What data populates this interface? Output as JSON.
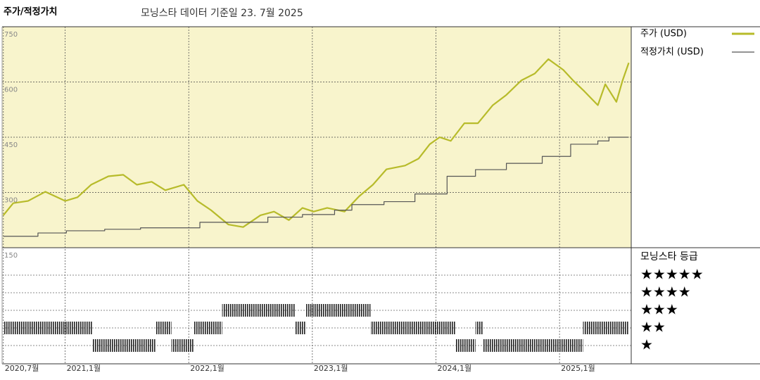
{
  "chart_data": {
    "type": "line",
    "title": "주가/적정가치",
    "subtitle": "모닝스타 데이터 기준일 23. 7월 2025",
    "xlim": [
      2020.49,
      2025.58
    ],
    "xticks": [
      {
        "value": 2020.5,
        "label": "2020,7월"
      },
      {
        "value": 2021,
        "label": "2021,1월"
      },
      {
        "value": 2022,
        "label": "2022,1월"
      },
      {
        "value": 2023,
        "label": "2023,1월"
      },
      {
        "value": 2024,
        "label": "2024,1월"
      },
      {
        "value": 2025,
        "label": "2025,1월"
      }
    ],
    "ylim": [
      150,
      750
    ],
    "yticks": [
      150,
      300,
      450,
      600,
      750
    ],
    "grid": true,
    "series": [
      {
        "name": "주가 (USD)",
        "color": "#b7bb2a",
        "x": [
          2020.5,
          2020.58,
          2020.7,
          2020.84,
          2021.0,
          2021.1,
          2021.21,
          2021.35,
          2021.47,
          2021.58,
          2021.7,
          2021.81,
          2021.96,
          2022.07,
          2022.18,
          2022.32,
          2022.44,
          2022.58,
          2022.69,
          2022.81,
          2022.92,
          2023.01,
          2023.12,
          2023.26,
          2023.38,
          2023.49,
          2023.6,
          2023.75,
          2023.86,
          2023.95,
          2024.03,
          2024.12,
          2024.23,
          2024.34,
          2024.46,
          2024.57,
          2024.69,
          2024.8,
          2024.91,
          2025.03,
          2025.11,
          2025.2,
          2025.31,
          2025.37,
          2025.46,
          2025.51,
          2025.56
        ],
        "values": [
          238,
          271,
          277,
          302,
          277,
          287,
          321,
          344,
          348,
          321,
          329,
          306,
          321,
          277,
          252,
          213,
          206,
          238,
          248,
          225,
          258,
          248,
          258,
          248,
          290,
          321,
          363,
          373,
          392,
          431,
          450,
          440,
          488,
          488,
          537,
          565,
          604,
          623,
          662,
          633,
          604,
          575,
          537,
          594,
          546,
          604,
          652
        ]
      },
      {
        "name": "적정가치 (USD)",
        "color": "#555555",
        "step": true,
        "x": [
          2020.5,
          2020.78,
          2021.01,
          2021.32,
          2021.61,
          2022.09,
          2022.64,
          2022.92,
          2023.18,
          2023.32,
          2023.58,
          2023.83,
          2024.09,
          2024.32,
          2024.57,
          2024.86,
          2025.09,
          2025.31,
          2025.4,
          2025.56
        ],
        "values": [
          181,
          190,
          196,
          200,
          204,
          219,
          233,
          240,
          252,
          267,
          275,
          296,
          344,
          362,
          379,
          398,
          431,
          440,
          450,
          450
        ]
      }
    ],
    "rating": {
      "title": "모닝스타 등급",
      "levels": [
        5,
        4,
        3,
        2,
        1
      ],
      "labels": [
        "★★★★★",
        "★★★★",
        "★★★",
        "★★",
        "★"
      ],
      "bounds": [
        2020.5,
        2021.22,
        2021.73,
        2021.86,
        2022.04,
        2022.27,
        2022.86,
        2022.95,
        2023.47,
        2024.16,
        2024.32,
        2024.38,
        2025.19,
        2025.56
      ],
      "stars": [
        2,
        1,
        2,
        1,
        2,
        3,
        2,
        3,
        2,
        1,
        2,
        1,
        2
      ]
    }
  }
}
